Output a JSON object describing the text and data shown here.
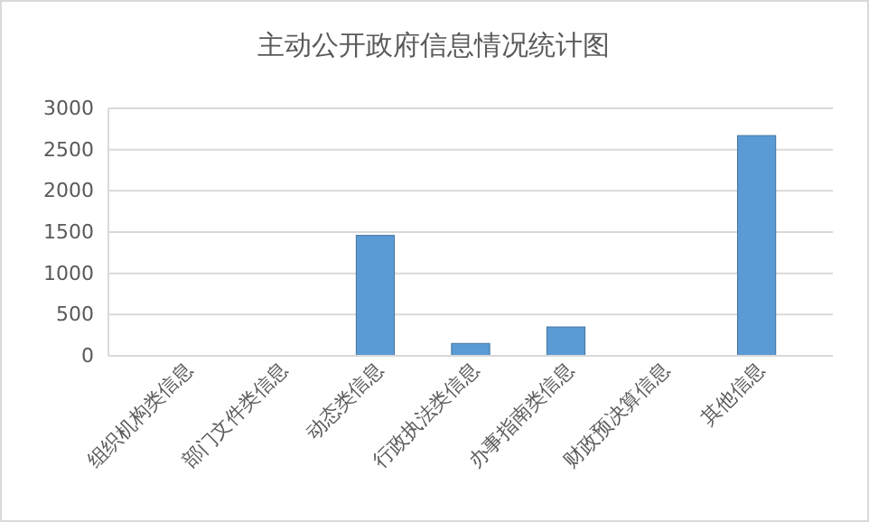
{
  "chart_data": {
    "type": "bar",
    "title": "主动公开政府信息情况统计图",
    "categories": [
      "组织机构类信息",
      "部门文件类信息",
      "动态类信息",
      "行政执法类信息",
      "办事指南类信息",
      "财政预决算信息",
      "其他信息"
    ],
    "values": [
      0,
      0,
      1460,
      150,
      350,
      0,
      2670
    ],
    "color": "#5b9bd5",
    "ylim": [
      0,
      3000
    ],
    "yticks": [
      0,
      500,
      1000,
      1500,
      2000,
      2500,
      3000
    ],
    "grid": "y"
  }
}
